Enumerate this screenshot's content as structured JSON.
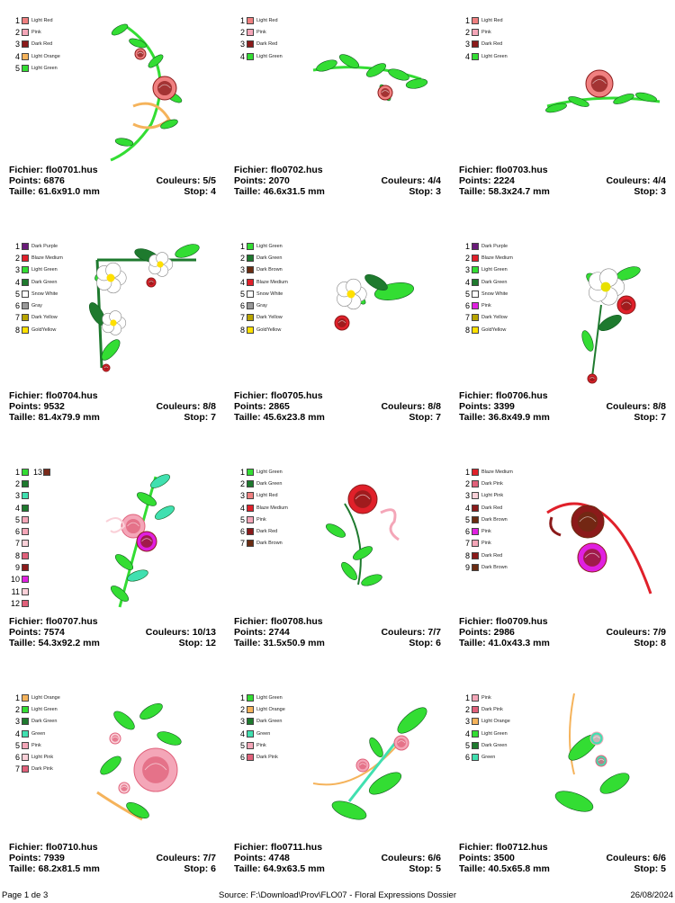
{
  "labels": {
    "file": "Fichier:",
    "points": "Points:",
    "size": "Taille:",
    "colors": "Couleurs:",
    "stop": "Stop:"
  },
  "designs": [
    {
      "file": "flo0701.hus",
      "points": "6876",
      "size": "61.6x91.0 mm",
      "colors": "5/5",
      "stop": "4",
      "palette": [
        {
          "n": "1",
          "name": "Light Red",
          "color": "#f08080"
        },
        {
          "n": "2",
          "name": "Pink",
          "color": "#f4a6b8"
        },
        {
          "n": "3",
          "name": "Dark Red",
          "color": "#8b1a1a"
        },
        {
          "n": "4",
          "name": "Light Orange",
          "color": "#f5b35b"
        },
        {
          "n": "5",
          "name": "Light Green",
          "color": "#33dd33"
        }
      ]
    },
    {
      "file": "flo0702.hus",
      "points": "2070",
      "size": "46.6x31.5 mm",
      "colors": "4/4",
      "stop": "3",
      "palette": [
        {
          "n": "1",
          "name": "Light Red",
          "color": "#f08080"
        },
        {
          "n": "2",
          "name": "Pink",
          "color": "#f4a6b8"
        },
        {
          "n": "3",
          "name": "Dark Red",
          "color": "#8b1a1a"
        },
        {
          "n": "4",
          "name": "Light Green",
          "color": "#33dd33"
        }
      ]
    },
    {
      "file": "flo0703.hus",
      "points": "2224",
      "size": "58.3x24.7 mm",
      "colors": "4/4",
      "stop": "3",
      "palette": [
        {
          "n": "1",
          "name": "Light Red",
          "color": "#f08080"
        },
        {
          "n": "2",
          "name": "Pink",
          "color": "#f4a6b8"
        },
        {
          "n": "3",
          "name": "Dark Red",
          "color": "#8b1a1a"
        },
        {
          "n": "4",
          "name": "Light Green",
          "color": "#33dd33"
        }
      ]
    },
    {
      "file": "flo0704.hus",
      "points": "9532",
      "size": "81.4x79.9 mm",
      "colors": "8/8",
      "stop": "7",
      "palette": [
        {
          "n": "1",
          "name": "Dark Purple",
          "color": "#6a1b7a"
        },
        {
          "n": "2",
          "name": "Blaze Medium",
          "color": "#e0202a"
        },
        {
          "n": "3",
          "name": "Light Green",
          "color": "#33dd33"
        },
        {
          "n": "4",
          "name": "Dark Green",
          "color": "#1e7a2e"
        },
        {
          "n": "5",
          "name": "Snow White",
          "color": "#ffffff"
        },
        {
          "n": "6",
          "name": "Gray",
          "color": "#999999"
        },
        {
          "n": "7",
          "name": "Dark Yellow",
          "color": "#b8a400"
        },
        {
          "n": "8",
          "name": "GoldYellow",
          "color": "#ffe000"
        }
      ]
    },
    {
      "file": "flo0705.hus",
      "points": "2865",
      "size": "45.6x23.8 mm",
      "colors": "8/8",
      "stop": "7",
      "palette": [
        {
          "n": "1",
          "name": "Light Green",
          "color": "#33dd33"
        },
        {
          "n": "2",
          "name": "Dark Green",
          "color": "#1e7a2e"
        },
        {
          "n": "3",
          "name": "Dark Brown",
          "color": "#6b2c12"
        },
        {
          "n": "4",
          "name": "Blaze Medium",
          "color": "#e0202a"
        },
        {
          "n": "5",
          "name": "Snow White",
          "color": "#ffffff"
        },
        {
          "n": "6",
          "name": "Gray",
          "color": "#999999"
        },
        {
          "n": "7",
          "name": "Dark Yellow",
          "color": "#b8a400"
        },
        {
          "n": "8",
          "name": "GoldYellow",
          "color": "#ffe000"
        }
      ]
    },
    {
      "file": "flo0706.hus",
      "points": "3399",
      "size": "36.8x49.9 mm",
      "colors": "8/8",
      "stop": "7",
      "palette": [
        {
          "n": "1",
          "name": "Dark Purple",
          "color": "#6a1b7a"
        },
        {
          "n": "2",
          "name": "Blaze Medium",
          "color": "#e0202a"
        },
        {
          "n": "3",
          "name": "Light Green",
          "color": "#33dd33"
        },
        {
          "n": "4",
          "name": "Dark Green",
          "color": "#1e7a2e"
        },
        {
          "n": "5",
          "name": "Snow White",
          "color": "#ffffff"
        },
        {
          "n": "6",
          "name": "Pink",
          "color": "#e020e0"
        },
        {
          "n": "7",
          "name": "Dark Yellow",
          "color": "#b8a400"
        },
        {
          "n": "8",
          "name": "GoldYellow",
          "color": "#ffe000"
        }
      ]
    },
    {
      "file": "flo0707.hus",
      "points": "7574",
      "size": "54.3x92.2 mm",
      "colors": "10/13",
      "stop": "12",
      "extra": {
        "n": "13",
        "color": "#7a2a1a"
      },
      "palette": [
        {
          "n": "1",
          "name": "",
          "color": "#33dd33"
        },
        {
          "n": "2",
          "name": "",
          "color": "#1e7a2e"
        },
        {
          "n": "3",
          "name": "",
          "color": "#40e0b0"
        },
        {
          "n": "4",
          "name": "",
          "color": "#1e7a2e"
        },
        {
          "n": "5",
          "name": "",
          "color": "#f4a6b8"
        },
        {
          "n": "6",
          "name": "",
          "color": "#f4a6b8"
        },
        {
          "n": "7",
          "name": "",
          "color": "#fad0d8"
        },
        {
          "n": "8",
          "name": "",
          "color": "#e0607a"
        },
        {
          "n": "9",
          "name": "",
          "color": "#8b1a1a"
        },
        {
          "n": "10",
          "name": "",
          "color": "#e020e0"
        },
        {
          "n": "11",
          "name": "",
          "color": "#fad0d8"
        },
        {
          "n": "12",
          "name": "",
          "color": "#e0607a"
        }
      ]
    },
    {
      "file": "flo0708.hus",
      "points": "2744",
      "size": "31.5x50.9 mm",
      "colors": "7/7",
      "stop": "6",
      "palette": [
        {
          "n": "1",
          "name": "Light Green",
          "color": "#33dd33"
        },
        {
          "n": "2",
          "name": "Dark Green",
          "color": "#1e7a2e"
        },
        {
          "n": "3",
          "name": "Light Red",
          "color": "#f08080"
        },
        {
          "n": "4",
          "name": "Blaze Medium",
          "color": "#e0202a"
        },
        {
          "n": "5",
          "name": "Pink",
          "color": "#f4a6b8"
        },
        {
          "n": "6",
          "name": "Dark Red",
          "color": "#8b1a1a"
        },
        {
          "n": "7",
          "name": "Dark Brown",
          "color": "#6b2c12"
        }
      ]
    },
    {
      "file": "flo0709.hus",
      "points": "2986",
      "size": "41.0x43.3 mm",
      "colors": "7/9",
      "stop": "8",
      "palette": [
        {
          "n": "1",
          "name": "Blaze Medium",
          "color": "#e0202a"
        },
        {
          "n": "2",
          "name": "Dark Pink",
          "color": "#e0607a"
        },
        {
          "n": "3",
          "name": "Light Pink",
          "color": "#fad0d8"
        },
        {
          "n": "4",
          "name": "Dark Red",
          "color": "#8b1a1a"
        },
        {
          "n": "5",
          "name": "Dark Brown",
          "color": "#6b2c12"
        },
        {
          "n": "6",
          "name": "Pink",
          "color": "#e020e0"
        },
        {
          "n": "7",
          "name": "Pink",
          "color": "#f4a6b8"
        },
        {
          "n": "8",
          "name": "Dark Red",
          "color": "#8b1a1a"
        },
        {
          "n": "9",
          "name": "Dark Brown",
          "color": "#6b2c12"
        }
      ]
    },
    {
      "file": "flo0710.hus",
      "points": "7939",
      "size": "68.2x81.5 mm",
      "colors": "7/7",
      "stop": "6",
      "palette": [
        {
          "n": "1",
          "name": "Light Orange",
          "color": "#f5b35b"
        },
        {
          "n": "2",
          "name": "Light Green",
          "color": "#33dd33"
        },
        {
          "n": "3",
          "name": "Dark Green",
          "color": "#1e7a2e"
        },
        {
          "n": "4",
          "name": "Green",
          "color": "#40e0b0"
        },
        {
          "n": "5",
          "name": "Pink",
          "color": "#f4a6b8"
        },
        {
          "n": "6",
          "name": "Light Pink",
          "color": "#fad0d8"
        },
        {
          "n": "7",
          "name": "Dark Pink",
          "color": "#e0607a"
        }
      ]
    },
    {
      "file": "flo0711.hus",
      "points": "4748",
      "size": "64.9x63.5 mm",
      "colors": "6/6",
      "stop": "5",
      "palette": [
        {
          "n": "1",
          "name": "Light Green",
          "color": "#33dd33"
        },
        {
          "n": "2",
          "name": "Light Orange",
          "color": "#f5b35b"
        },
        {
          "n": "3",
          "name": "Dark Green",
          "color": "#1e7a2e"
        },
        {
          "n": "4",
          "name": "Green",
          "color": "#40e0b0"
        },
        {
          "n": "5",
          "name": "Pink",
          "color": "#f4a6b8"
        },
        {
          "n": "6",
          "name": "Dark Pink",
          "color": "#e0607a"
        }
      ]
    },
    {
      "file": "flo0712.hus",
      "points": "3500",
      "size": "40.5x65.8 mm",
      "colors": "6/6",
      "stop": "5",
      "palette": [
        {
          "n": "1",
          "name": "Pink",
          "color": "#f4a6b8"
        },
        {
          "n": "2",
          "name": "Dark Pink",
          "color": "#e0607a"
        },
        {
          "n": "3",
          "name": "Light Orange",
          "color": "#f5b35b"
        },
        {
          "n": "4",
          "name": "Light Green",
          "color": "#33dd33"
        },
        {
          "n": "5",
          "name": "Dark Green",
          "color": "#1e7a2e"
        },
        {
          "n": "6",
          "name": "Green",
          "color": "#40e0b0"
        }
      ]
    }
  ],
  "footer": {
    "page": "Page 1 de 3",
    "source": "Source: F:\\Download\\Prov\\FLO07 - Floral Expressions Dossier",
    "date": "26/08/2024"
  }
}
